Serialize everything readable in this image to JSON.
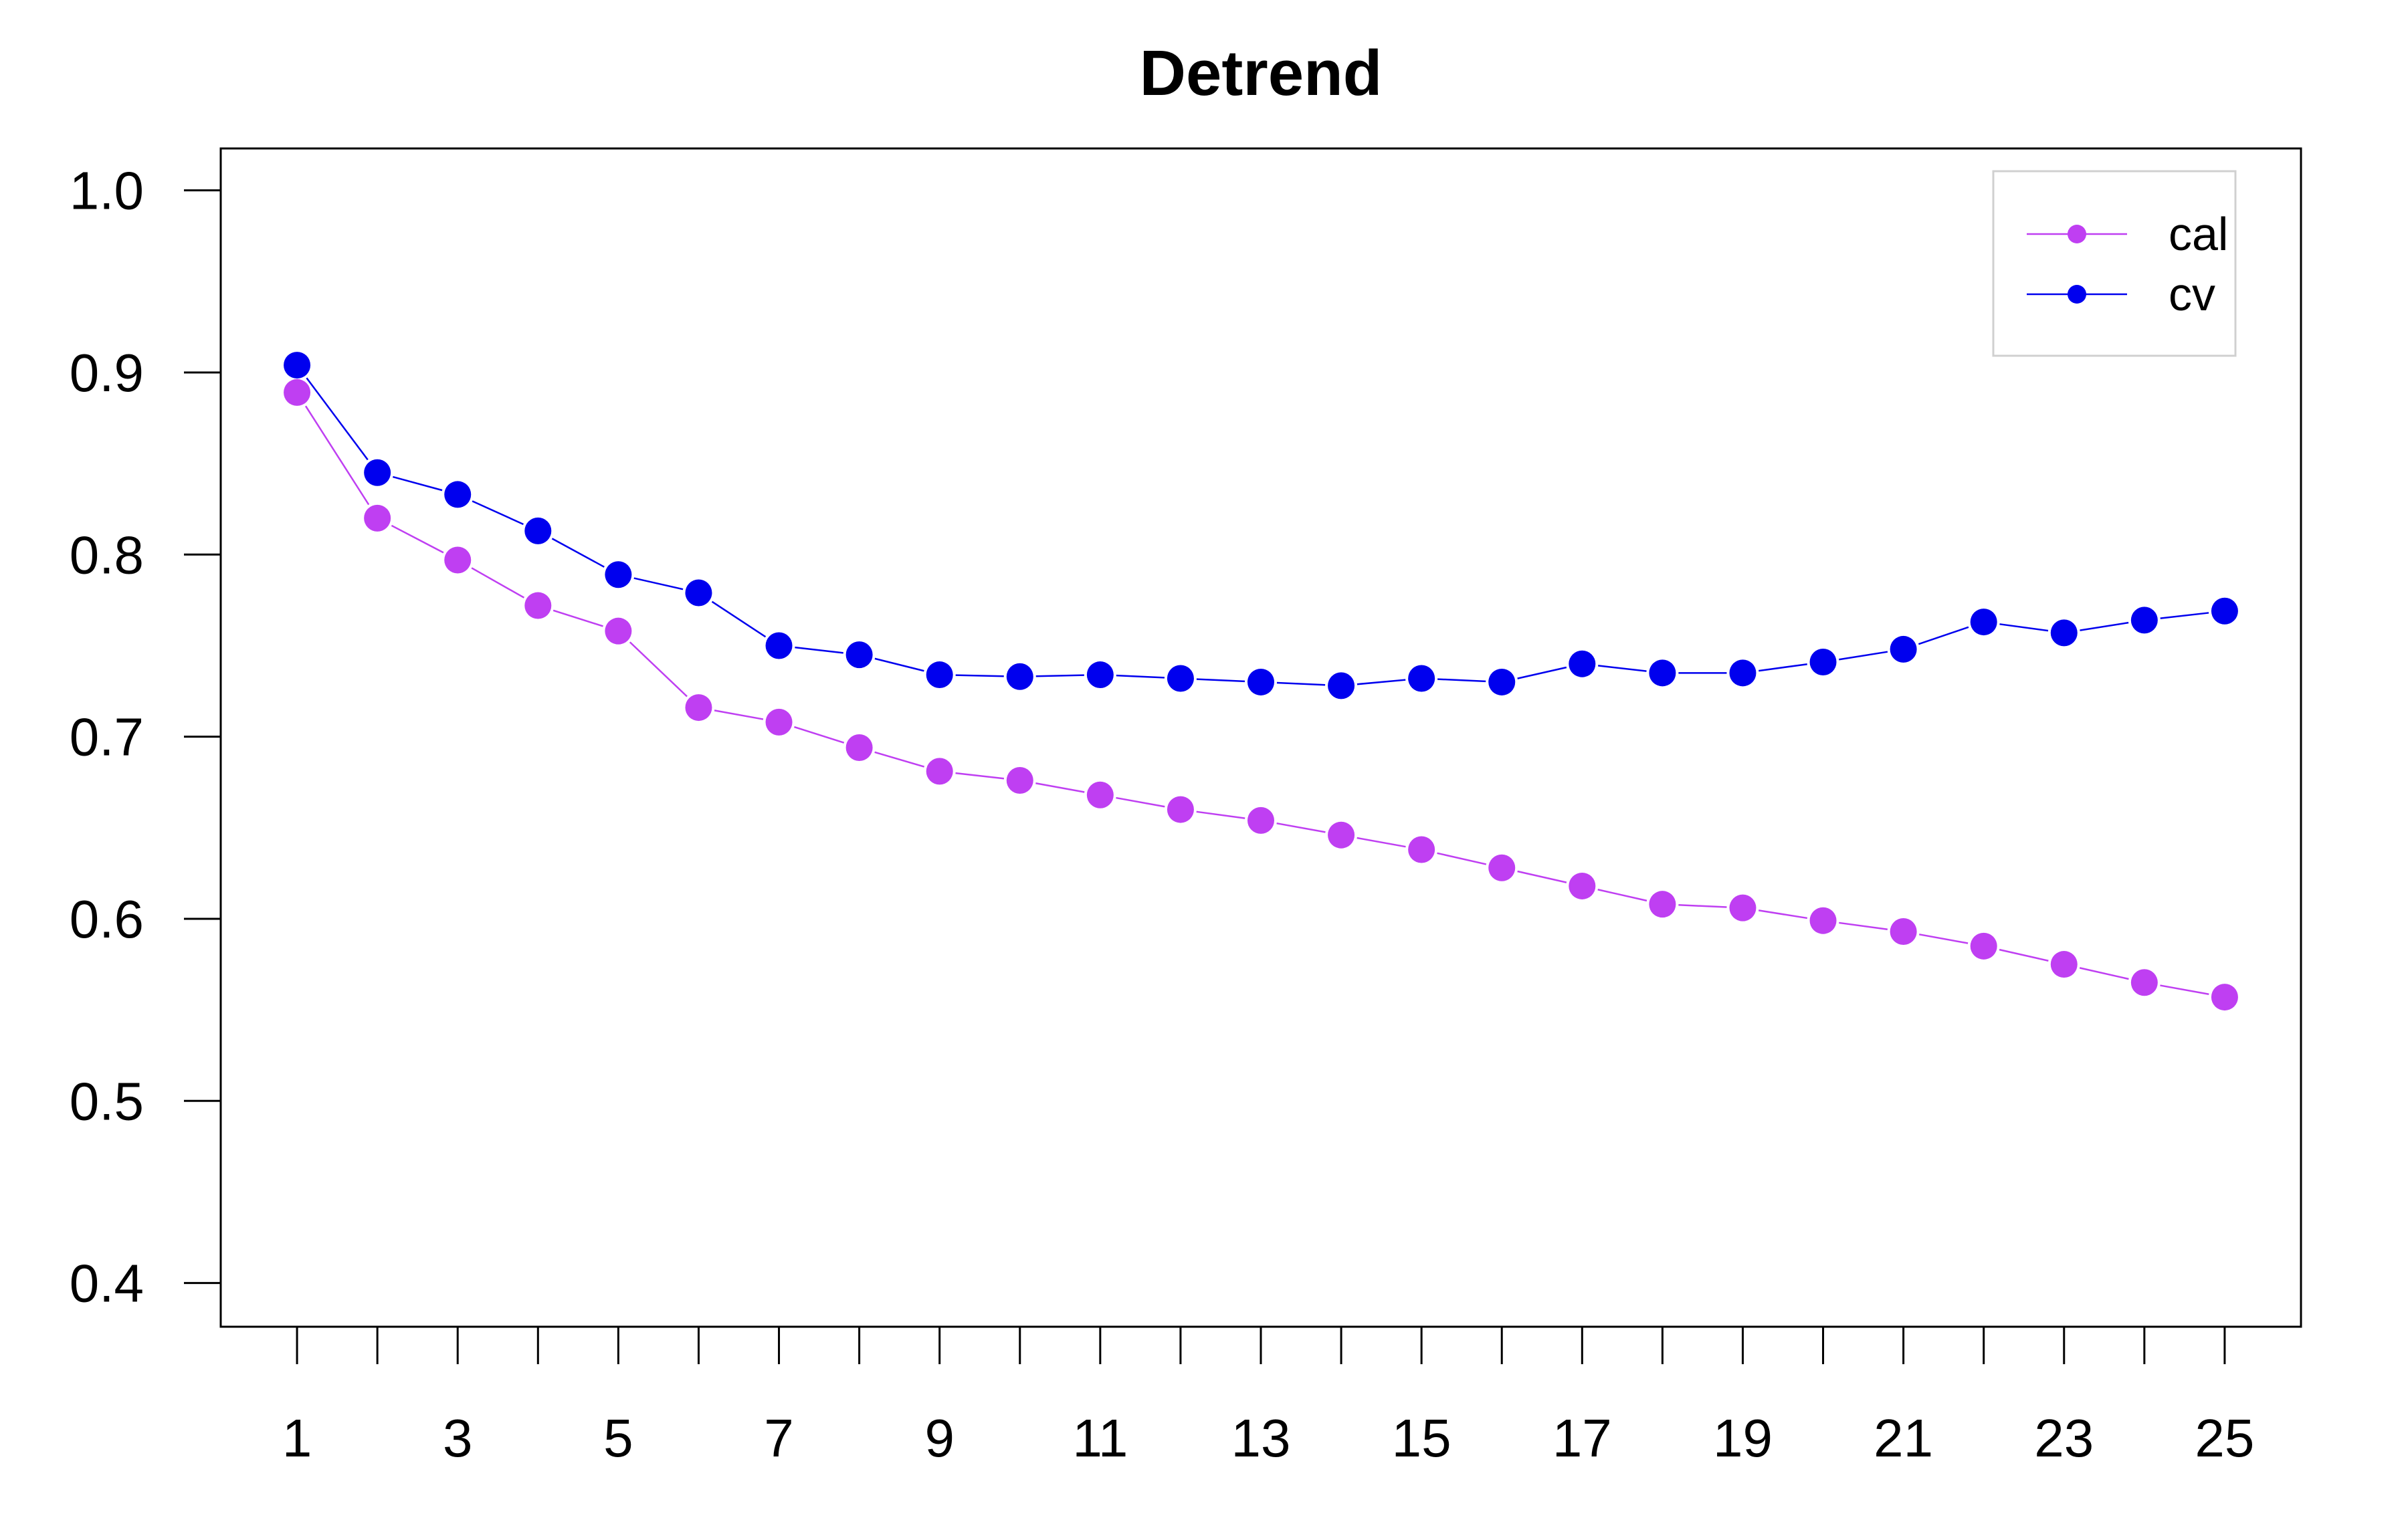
{
  "chart_data": {
    "type": "line",
    "title": "Detrend",
    "xlabel": "",
    "ylabel": "",
    "x": [
      1,
      2,
      3,
      4,
      5,
      6,
      7,
      8,
      9,
      10,
      11,
      12,
      13,
      14,
      15,
      16,
      17,
      18,
      19,
      20,
      21,
      22,
      23,
      24,
      25
    ],
    "x_tick_labels": [
      "1",
      "3",
      "5",
      "7",
      "9",
      "11",
      "13",
      "15",
      "17",
      "19",
      "21",
      "23",
      "25"
    ],
    "y_tick_labels": [
      "0.4",
      "0.5",
      "0.6",
      "0.7",
      "0.8",
      "0.9",
      "1.0"
    ],
    "xlim": [
      0.05,
      25.95
    ],
    "ylim": [
      0.376,
      1.023
    ],
    "grid": false,
    "legend_position": "top-right",
    "series": [
      {
        "name": "cal",
        "color": "#bf3ff2",
        "values": [
          0.889,
          0.82,
          0.797,
          0.772,
          0.758,
          0.716,
          0.708,
          0.694,
          0.681,
          0.676,
          0.668,
          0.66,
          0.654,
          0.646,
          0.638,
          0.628,
          0.618,
          0.608,
          0.606,
          0.599,
          0.593,
          0.585,
          0.575,
          0.565,
          0.557
        ]
      },
      {
        "name": "cv",
        "color": "#0000ee",
        "values": [
          0.904,
          0.845,
          0.833,
          0.813,
          0.789,
          0.779,
          0.75,
          0.745,
          0.734,
          0.733,
          0.734,
          0.732,
          0.73,
          0.728,
          0.732,
          0.73,
          0.74,
          0.735,
          0.735,
          0.741,
          0.748,
          0.763,
          0.757,
          0.764,
          0.769
        ]
      }
    ]
  }
}
